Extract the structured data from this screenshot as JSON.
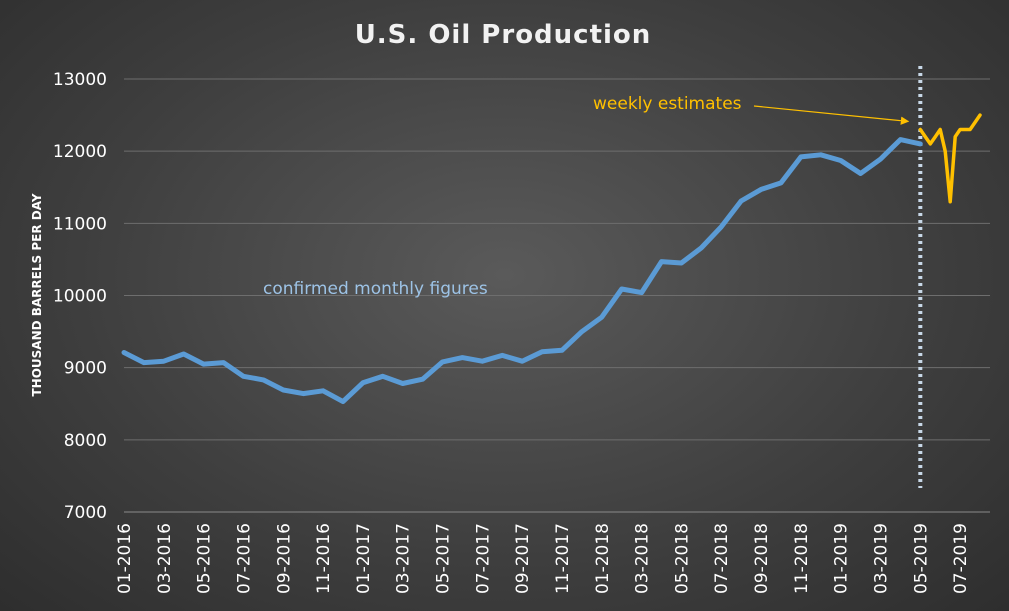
{
  "chart_data": {
    "type": "line",
    "title": "U.S. Oil Production",
    "xlabel": "",
    "ylabel": "THOUSAND BARRELS PER DAY",
    "ylim": [
      7000,
      13000
    ],
    "yticks": [
      7000,
      8000,
      9000,
      10000,
      11000,
      12000,
      13000
    ],
    "grid": true,
    "x_tick_labels": [
      "01-2016",
      "03-2016",
      "05-2016",
      "07-2016",
      "09-2016",
      "11-2016",
      "01-2017",
      "03-2017",
      "05-2017",
      "07-2017",
      "09-2017",
      "11-2017",
      "01-2018",
      "03-2018",
      "05-2018",
      "07-2018",
      "09-2018",
      "11-2018",
      "01-2019",
      "03-2019",
      "05-2019",
      "07-2019"
    ],
    "series": [
      {
        "color": "#5b9bd5",
        "x": [
          "01-2016",
          "02-2016",
          "03-2016",
          "04-2016",
          "05-2016",
          "06-2016",
          "07-2016",
          "08-2016",
          "09-2016",
          "10-2016",
          "11-2016",
          "12-2016",
          "01-2017",
          "02-2017",
          "03-2017",
          "04-2017",
          "05-2017",
          "06-2017",
          "07-2017",
          "08-2017",
          "09-2017",
          "10-2017",
          "11-2017",
          "12-2017",
          "01-2018",
          "02-2018",
          "03-2018",
          "04-2018",
          "05-2018",
          "06-2018",
          "07-2018",
          "08-2018",
          "09-2018",
          "10-2018",
          "11-2018",
          "12-2018",
          "01-2019",
          "02-2019",
          "03-2019",
          "04-2019",
          "05-2019"
        ],
        "values": [
          9210,
          9070,
          9090,
          9190,
          9050,
          9070,
          8880,
          8830,
          8690,
          8640,
          8680,
          8530,
          8790,
          8880,
          8780,
          8840,
          9080,
          9140,
          9090,
          9170,
          9090,
          9220,
          9240,
          9500,
          9700,
          10090,
          10040,
          10470,
          10450,
          10660,
          10950,
          11310,
          11470,
          11560,
          11920,
          11950,
          11870,
          11690,
          11890,
          12160,
          12100
        ]
      },
      {
        "color": "#ffc000",
        "x": [
          "05-2019",
          "05-2019+1w",
          "05-2019+2w",
          "05-2019+3w",
          "06-2019",
          "06-2019+1w",
          "06-2019+2w",
          "06-2019+3w",
          "07-2019",
          "07-2019+1w",
          "07-2019+2w",
          "07-2019+3w",
          "08-2019"
        ],
        "values": [
          12300,
          12200,
          12100,
          12200,
          12300,
          12000,
          11300,
          12200,
          12300,
          12300,
          12300,
          12400,
          12500
        ]
      }
    ],
    "annotations": [
      {
        "text": "weekly estimates",
        "color": "#ffc000",
        "target": {
          "x": "04-2019",
          "y": 12190
        }
      },
      {
        "text": "confirmed monthly figures",
        "color": "#9dc3e6"
      }
    ],
    "forecast_divider": {
      "x": "05-2019",
      "color": "#c8d8e8"
    }
  }
}
